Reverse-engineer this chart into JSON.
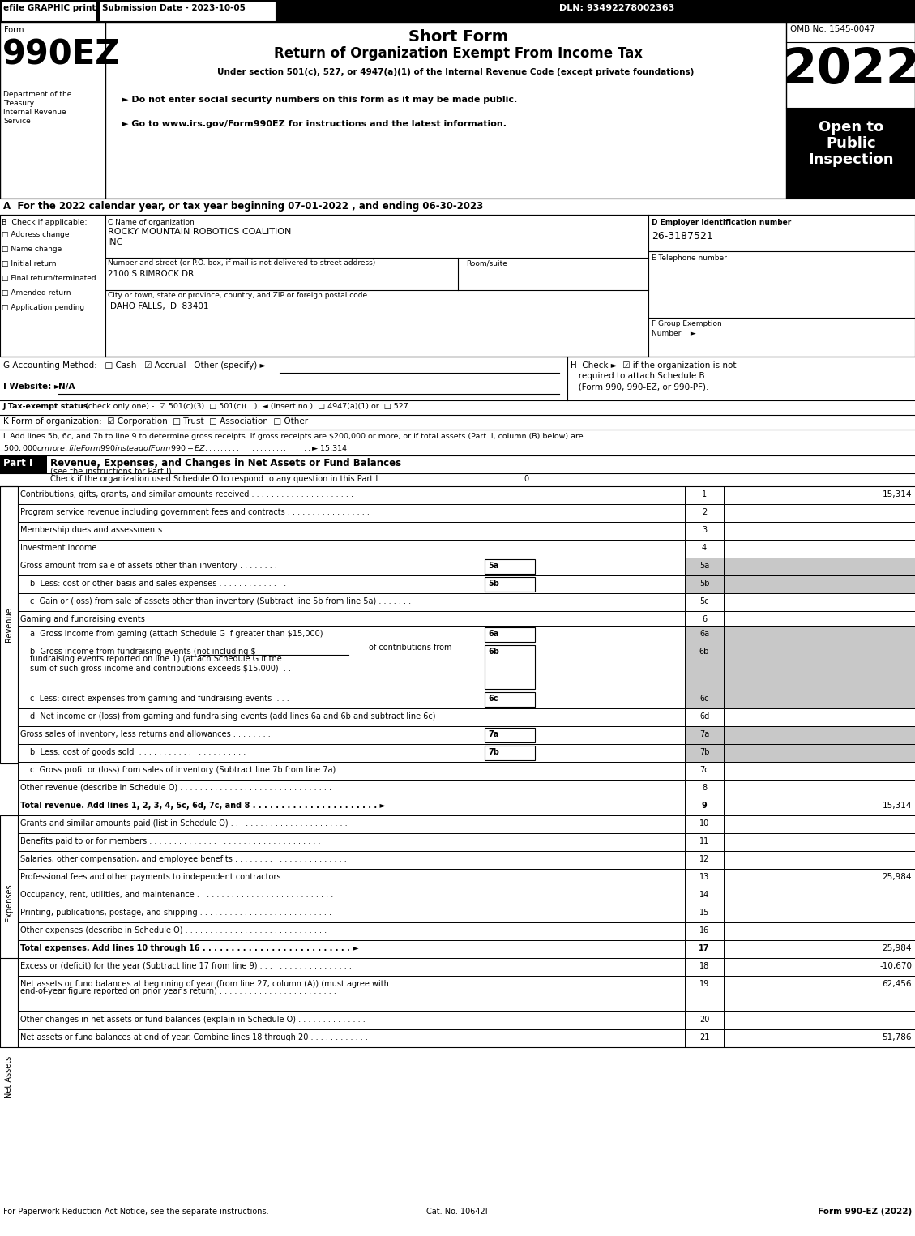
{
  "efile_text": "efile GRAPHIC print",
  "submission_date": "Submission Date - 2023-10-05",
  "dln": "DLN: 93492278002363",
  "short_form": "Short Form",
  "return_title": "Return of Organization Exempt From Income Tax",
  "under_section": "Under section 501(c), 527, or 4947(a)(1) of the Internal Revenue Code (except private foundations)",
  "ssn_warning": "Do not enter social security numbers on this form as it may be made public.",
  "goto_irs": "Go to www.irs.gov/Form990EZ for instructions and the latest information.",
  "omb_no": "OMB No. 1545-0047",
  "year": "2022",
  "open_to_line1": "Open to",
  "open_to_line2": "Public",
  "open_to_line3": "Inspection",
  "year_line": "A  For the 2022 calendar year, or tax year beginning 07-01-2022 , and ending 06-30-2023",
  "checkboxes_b": [
    "Address change",
    "Name change",
    "Initial return",
    "Final return/terminated",
    "Amended return",
    "Application pending"
  ],
  "org_name_line1": "ROCKY MOUNTAIN ROBOTICS COALITION",
  "org_name_line2": "INC",
  "ein": "26-3187521",
  "street": "2100 S RIMROCK DR",
  "city": "IDAHO FALLS, ID  83401",
  "footer_left": "For Paperwork Reduction Act Notice, see the separate instructions.",
  "footer_cat": "Cat. No. 10642I",
  "footer_right": "Form 990-EZ (2022)",
  "bg_color": "#ffffff",
  "shaded_color": "#c8c8c8"
}
